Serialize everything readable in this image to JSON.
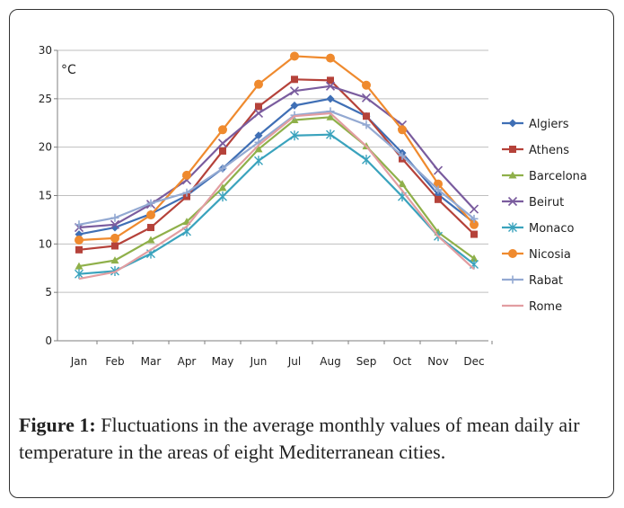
{
  "caption": {
    "label": "Figure 1:",
    "text": "Fluctuations in the average monthly values of mean daily air temperature in the areas of eight Mediterranean cities."
  },
  "chart_data": {
    "type": "line",
    "title": "",
    "unit_label": "°C",
    "xlabel": "",
    "ylabel": "",
    "categories": [
      "Jan",
      "Feb",
      "Mar",
      "Apr",
      "May",
      "Jun",
      "Jul",
      "Aug",
      "Sep",
      "Oct",
      "Nov",
      "Dec"
    ],
    "ylim": [
      0,
      30
    ],
    "yticks": [
      0,
      5,
      10,
      15,
      20,
      25,
      30
    ],
    "grid": "horizontal",
    "legend_position": "right",
    "series": [
      {
        "name": "Algiers",
        "color": "#3f6fb5",
        "marker": "diamond",
        "values": [
          11.0,
          11.7,
          13.1,
          15.0,
          17.8,
          21.2,
          24.3,
          25.0,
          23.2,
          19.4,
          15.1,
          12.2
        ]
      },
      {
        "name": "Athens",
        "color": "#b5423a",
        "marker": "square",
        "values": [
          9.4,
          9.8,
          11.7,
          14.9,
          19.6,
          24.2,
          27.0,
          26.9,
          23.2,
          18.8,
          14.6,
          11.0
        ]
      },
      {
        "name": "Barcelona",
        "color": "#8fb04a",
        "marker": "triangle",
        "values": [
          7.7,
          8.3,
          10.4,
          12.3,
          15.8,
          19.8,
          22.8,
          23.1,
          20.1,
          16.2,
          11.2,
          8.5
        ]
      },
      {
        "name": "Beirut",
        "color": "#7a5c9e",
        "marker": "x",
        "values": [
          11.7,
          12.0,
          14.1,
          16.6,
          20.4,
          23.5,
          25.8,
          26.3,
          25.1,
          22.3,
          17.6,
          13.6
        ]
      },
      {
        "name": "Monaco",
        "color": "#3aa3bd",
        "marker": "star",
        "values": [
          6.9,
          7.2,
          9.0,
          11.3,
          14.9,
          18.6,
          21.2,
          21.3,
          18.7,
          14.9,
          10.8,
          7.9
        ]
      },
      {
        "name": "Nicosia",
        "color": "#ef8a2e",
        "marker": "circle",
        "values": [
          10.4,
          10.6,
          13.0,
          17.1,
          21.8,
          26.5,
          29.4,
          29.2,
          26.4,
          21.8,
          16.2,
          12.0
        ]
      },
      {
        "name": "Rabat",
        "color": "#93a9d2",
        "marker": "plus",
        "values": [
          12.0,
          12.7,
          14.2,
          15.3,
          17.8,
          20.5,
          23.3,
          23.7,
          22.3,
          19.1,
          15.6,
          12.6
        ]
      },
      {
        "name": "Rome",
        "color": "#e29da1",
        "marker": "none",
        "values": [
          6.4,
          7.1,
          9.4,
          11.8,
          16.4,
          20.2,
          23.2,
          23.5,
          20.1,
          15.5,
          10.8,
          7.4
        ]
      }
    ]
  }
}
